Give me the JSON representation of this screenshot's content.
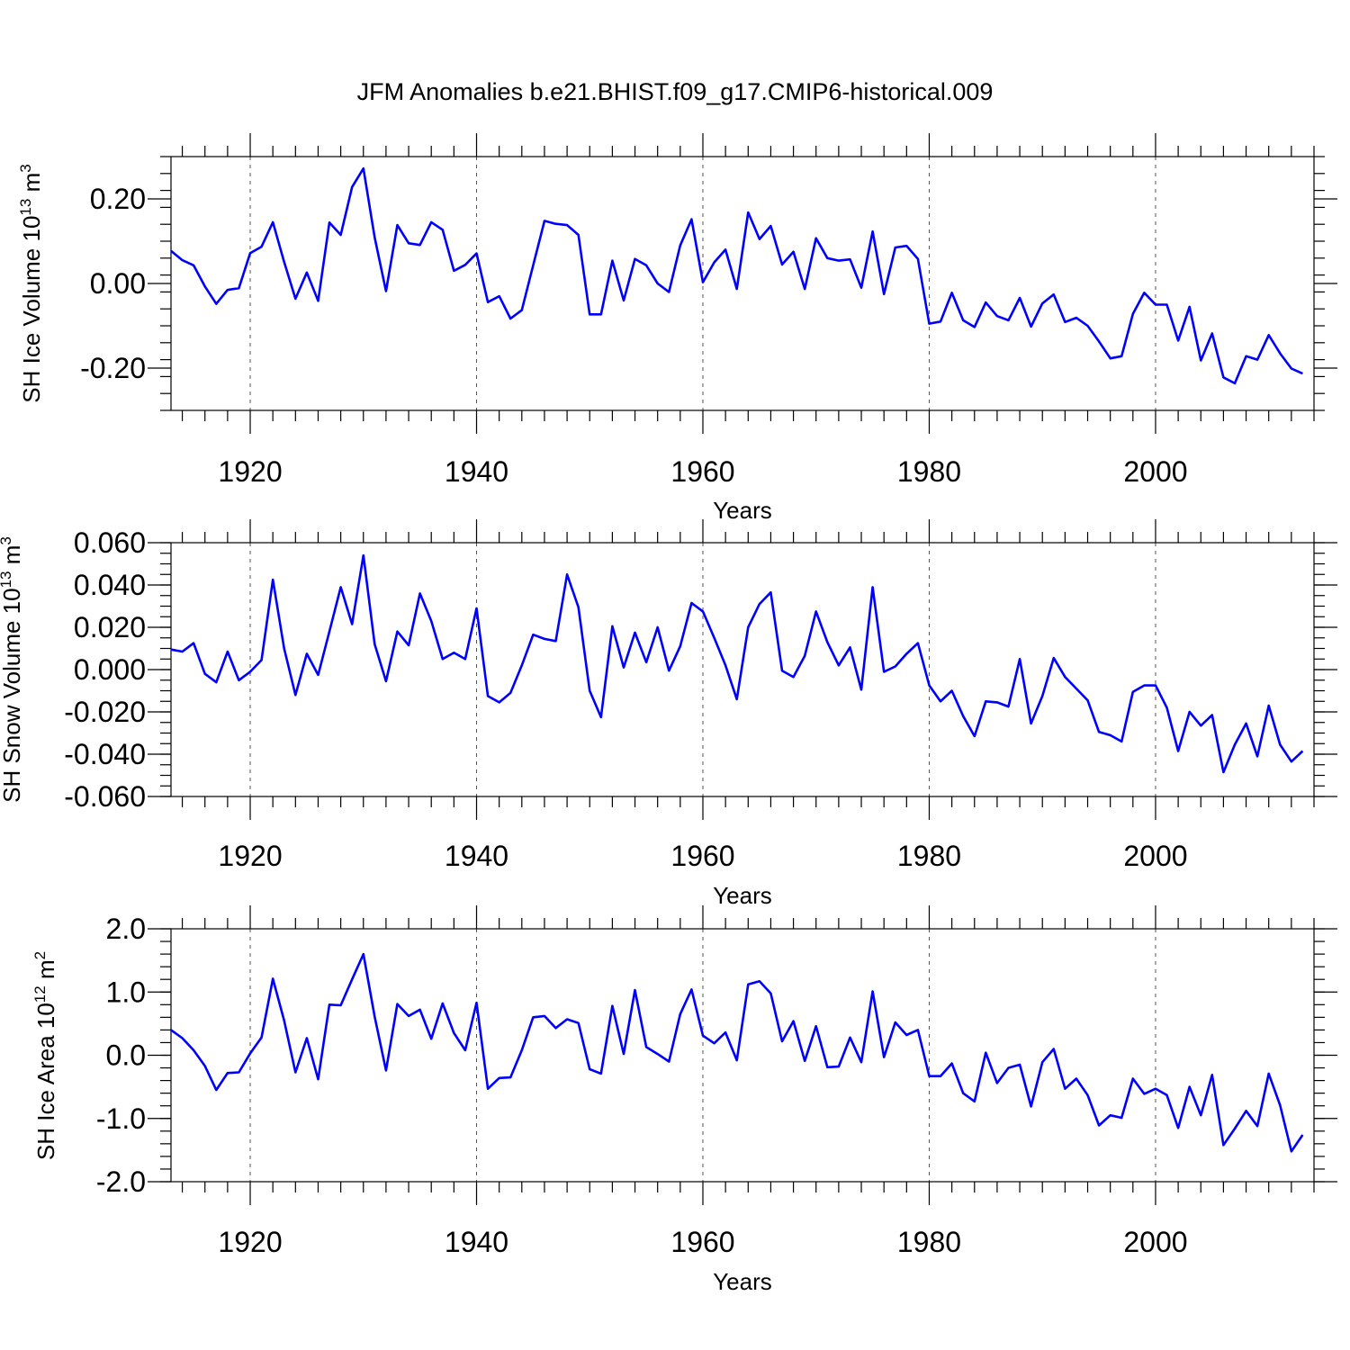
{
  "title": "JFM Anomalies b.e21.BHIST.f09_g17.CMIP6-historical.009",
  "chart_data": [
    {
      "type": "line",
      "name": "ice-volume",
      "ylabel": "SH Ice Volume 10",
      "ylabel_exp": "13",
      "ylabel_unit": " m",
      "ylabel_unit_exp": "3",
      "xlabel": "Years",
      "xlim": [
        1913,
        2014
      ],
      "ylim": [
        -0.3,
        0.3
      ],
      "x_major_ticks": [
        1920,
        1940,
        1960,
        1980,
        2000
      ],
      "x_tick_labels": [
        "1920",
        "1940",
        "1960",
        "1980",
        "2000"
      ],
      "y_major_ticks": [
        -0.2,
        0.0,
        0.2
      ],
      "y_tick_labels": [
        "-0.20",
        "0.00",
        "0.20"
      ],
      "y_minor_step": 0.04,
      "grid": "vertical dashed at major x ticks",
      "color": "#0000ff",
      "x_start": 1913,
      "values": [
        0.077,
        0.055,
        0.043,
        -0.007,
        -0.048,
        -0.015,
        -0.011,
        0.072,
        0.087,
        0.145,
        0.051,
        -0.036,
        0.026,
        -0.041,
        0.144,
        0.115,
        0.228,
        0.272,
        0.109,
        -0.018,
        0.138,
        0.095,
        0.091,
        0.145,
        0.127,
        0.03,
        0.044,
        0.071,
        -0.044,
        -0.03,
        -0.083,
        -0.063,
        0.043,
        0.148,
        0.141,
        0.138,
        0.115,
        -0.073,
        -0.073,
        0.054,
        -0.04,
        0.058,
        0.043,
        0.0,
        -0.02,
        0.09,
        0.152,
        0.003,
        0.05,
        0.08,
        -0.013,
        0.168,
        0.105,
        0.136,
        0.045,
        0.075,
        -0.013,
        0.107,
        0.06,
        0.054,
        0.057,
        -0.01,
        0.123,
        -0.025,
        0.085,
        0.089,
        0.058,
        -0.095,
        -0.09,
        -0.022,
        -0.087,
        -0.103,
        -0.045,
        -0.077,
        -0.087,
        -0.034,
        -0.102,
        -0.047,
        -0.026,
        -0.091,
        -0.081,
        -0.1,
        -0.137,
        -0.177,
        -0.172,
        -0.072,
        -0.022,
        -0.05,
        -0.05,
        -0.135,
        -0.055,
        -0.182,
        -0.118,
        -0.222,
        -0.236,
        -0.172,
        -0.18,
        -0.122,
        -0.165,
        -0.201,
        -0.213
      ]
    },
    {
      "type": "line",
      "name": "snow-volume",
      "ylabel": "SH Snow Volume 10",
      "ylabel_exp": "13",
      "ylabel_unit": " m",
      "ylabel_unit_exp": "3",
      "xlabel": "Years",
      "xlim": [
        1913,
        2014
      ],
      "ylim": [
        -0.06,
        0.06
      ],
      "x_major_ticks": [
        1920,
        1940,
        1960,
        1980,
        2000
      ],
      "x_tick_labels": [
        "1920",
        "1940",
        "1960",
        "1980",
        "2000"
      ],
      "y_major_ticks": [
        -0.06,
        -0.04,
        -0.02,
        0.0,
        0.02,
        0.04,
        0.06
      ],
      "y_tick_labels": [
        "-0.060",
        "-0.040",
        "-0.020",
        "0.000",
        "0.020",
        "0.040",
        "0.060"
      ],
      "y_minor_step": 0.005,
      "grid": "vertical dashed at major x ticks",
      "color": "#0000ff",
      "x_start": 1913,
      "values": [
        0.0095,
        0.0085,
        0.0125,
        -0.002,
        -0.006,
        0.0085,
        -0.005,
        -0.001,
        0.0045,
        0.0425,
        0.01,
        -0.012,
        0.0075,
        -0.0025,
        0.018,
        0.039,
        0.0215,
        0.054,
        0.012,
        -0.0055,
        0.018,
        0.0115,
        0.036,
        0.023,
        0.005,
        0.008,
        0.005,
        0.029,
        -0.0125,
        -0.0155,
        -0.011,
        0.002,
        0.0165,
        0.0145,
        0.0135,
        0.045,
        0.0295,
        -0.01,
        -0.0225,
        0.0205,
        0.001,
        0.0175,
        0.0035,
        0.02,
        -0.0005,
        0.011,
        0.0315,
        0.0275,
        0.015,
        0.002,
        -0.014,
        0.02,
        0.031,
        0.0365,
        -0.0005,
        -0.0035,
        0.0065,
        0.0275,
        0.013,
        0.002,
        0.0105,
        -0.0095,
        0.039,
        -0.001,
        0.0015,
        0.0075,
        0.0125,
        -0.0075,
        -0.015,
        -0.01,
        -0.022,
        -0.0315,
        -0.015,
        -0.0155,
        -0.0175,
        0.005,
        -0.0255,
        -0.0125,
        0.0055,
        -0.0035,
        -0.009,
        -0.0145,
        -0.0295,
        -0.031,
        -0.034,
        -0.0105,
        -0.0075,
        -0.0075,
        -0.018,
        -0.0385,
        -0.02,
        -0.0265,
        -0.0215,
        -0.0485,
        -0.0355,
        -0.0255,
        -0.041,
        -0.017,
        -0.0355,
        -0.0435,
        -0.0385
      ]
    },
    {
      "type": "line",
      "name": "ice-area",
      "ylabel": "SH Ice Area 10",
      "ylabel_exp": "12",
      "ylabel_unit": " m",
      "ylabel_unit_exp": "2",
      "xlabel": "Years",
      "xlim": [
        1913,
        2014
      ],
      "ylim": [
        -2.0,
        2.0
      ],
      "x_major_ticks": [
        1920,
        1940,
        1960,
        1980,
        2000
      ],
      "x_tick_labels": [
        "1920",
        "1940",
        "1960",
        "1980",
        "2000"
      ],
      "y_major_ticks": [
        -2.0,
        -1.0,
        0.0,
        1.0,
        2.0
      ],
      "y_tick_labels": [
        "-2.0",
        "-1.0",
        "0.0",
        "1.0",
        "2.0"
      ],
      "y_minor_step": 0.2,
      "grid": "vertical dashed at major x ticks",
      "color": "#0000ff",
      "x_start": 1913,
      "values": [
        0.4,
        0.27,
        0.08,
        -0.17,
        -0.55,
        -0.28,
        -0.27,
        0.03,
        0.28,
        1.21,
        0.55,
        -0.27,
        0.27,
        -0.38,
        0.8,
        0.79,
        1.2,
        1.6,
        0.61,
        -0.24,
        0.81,
        0.62,
        0.72,
        0.26,
        0.82,
        0.35,
        0.08,
        0.83,
        -0.53,
        -0.36,
        -0.35,
        0.08,
        0.6,
        0.62,
        0.43,
        0.57,
        0.51,
        -0.22,
        -0.29,
        0.78,
        0.02,
        1.03,
        0.13,
        0.02,
        -0.1,
        0.65,
        1.04,
        0.31,
        0.19,
        0.36,
        -0.08,
        1.12,
        1.17,
        0.98,
        0.22,
        0.54,
        -0.09,
        0.46,
        -0.19,
        -0.18,
        0.28,
        -0.11,
        1.01,
        -0.03,
        0.52,
        0.32,
        0.4,
        -0.33,
        -0.33,
        -0.13,
        -0.6,
        -0.73,
        0.04,
        -0.44,
        -0.2,
        -0.15,
        -0.81,
        -0.11,
        0.1,
        -0.53,
        -0.37,
        -0.63,
        -1.11,
        -0.95,
        -0.99,
        -0.37,
        -0.61,
        -0.53,
        -0.63,
        -1.15,
        -0.5,
        -0.95,
        -0.31,
        -1.42,
        -1.16,
        -0.88,
        -1.12,
        -0.29,
        -0.79,
        -1.52,
        -1.26
      ]
    }
  ]
}
